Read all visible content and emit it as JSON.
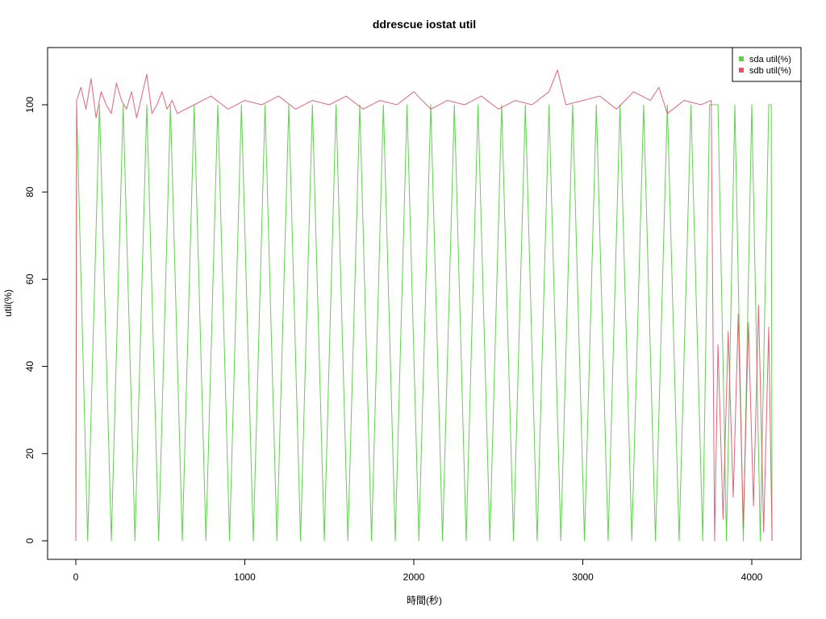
{
  "chart_data": {
    "type": "line",
    "title": "ddrescue iostat util",
    "xlabel": "時間(秒)",
    "ylabel": "util(%)",
    "xlim": [
      0,
      4130
    ],
    "ylim": [
      0,
      108
    ],
    "x_ticks": [
      0,
      1000,
      2000,
      3000,
      4000
    ],
    "x_tick_labels": [
      "0",
      "1000",
      "2000",
      "3000",
      "4000"
    ],
    "y_ticks": [
      0,
      20,
      40,
      60,
      80,
      100
    ],
    "y_tick_labels": [
      "0",
      "20",
      "40",
      "60",
      "80",
      "100"
    ],
    "legend_position": "top-right",
    "grid": false,
    "series": [
      {
        "name": "sda util(%)",
        "color": "#61d04f",
        "x": [
          0,
          5,
          70,
          140,
          210,
          280,
          350,
          420,
          490,
          560,
          630,
          700,
          770,
          840,
          910,
          980,
          1050,
          1120,
          1190,
          1260,
          1330,
          1400,
          1470,
          1540,
          1610,
          1680,
          1750,
          1820,
          1890,
          1960,
          2030,
          2100,
          2170,
          2240,
          2310,
          2380,
          2450,
          2520,
          2590,
          2660,
          2730,
          2800,
          2870,
          2940,
          3010,
          3080,
          3150,
          3220,
          3290,
          3360,
          3430,
          3500,
          3570,
          3640,
          3710,
          3750,
          3800,
          3850,
          3900,
          3950,
          4000,
          4050,
          4100,
          4115,
          4120
        ],
        "values": [
          0,
          100,
          0,
          100,
          0,
          100,
          0,
          100,
          0,
          100,
          0,
          100,
          0,
          100,
          0,
          100,
          0,
          100,
          0,
          100,
          0,
          100,
          0,
          100,
          0,
          100,
          0,
          100,
          0,
          100,
          0,
          100,
          0,
          100,
          0,
          100,
          0,
          100,
          0,
          100,
          0,
          100,
          0,
          100,
          0,
          100,
          0,
          100,
          0,
          100,
          0,
          100,
          0,
          100,
          0,
          100,
          100,
          0,
          100,
          0,
          100,
          0,
          100,
          100,
          0
        ]
      },
      {
        "name": "sdb util(%)",
        "color": "#df536b",
        "x": [
          0,
          5,
          30,
          60,
          90,
          120,
          150,
          180,
          210,
          240,
          270,
          300,
          330,
          360,
          390,
          420,
          450,
          480,
          510,
          540,
          570,
          600,
          700,
          800,
          900,
          1000,
          1100,
          1200,
          1300,
          1400,
          1500,
          1600,
          1700,
          1800,
          1900,
          2000,
          2100,
          2200,
          2300,
          2400,
          2500,
          2600,
          2700,
          2800,
          2850,
          2900,
          3000,
          3100,
          3200,
          3300,
          3400,
          3450,
          3500,
          3600,
          3700,
          3760,
          3780,
          3800,
          3830,
          3860,
          3890,
          3920,
          3950,
          3980,
          4010,
          4040,
          4070,
          4100,
          4120
        ],
        "values": [
          0,
          101,
          104,
          99,
          106,
          97,
          103,
          100,
          98,
          105,
          101,
          99,
          103,
          97,
          102,
          107,
          98,
          100,
          103,
          99,
          101,
          98,
          100,
          102,
          99,
          101,
          100,
          102,
          99,
          101,
          100,
          102,
          99,
          101,
          100,
          103,
          99,
          101,
          100,
          102,
          99,
          101,
          100,
          103,
          108,
          100,
          101,
          102,
          99,
          103,
          101,
          104,
          98,
          101,
          100,
          101,
          0,
          45,
          5,
          48,
          10,
          52,
          3,
          50,
          8,
          54,
          2,
          49,
          0
        ]
      }
    ]
  }
}
